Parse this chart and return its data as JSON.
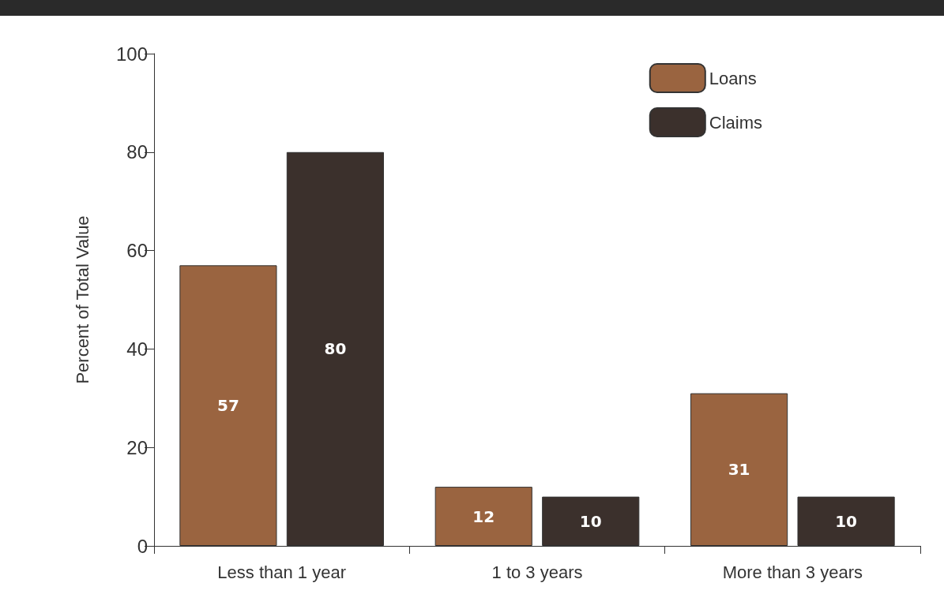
{
  "chart_data": {
    "type": "bar",
    "ylabel": "Percent of Total Value",
    "categories": [
      "Less than 1 year",
      "1 to 3 years",
      "More than 3 years"
    ],
    "series": [
      {
        "name": "Loans",
        "color": "#9a6440",
        "values": [
          57,
          12,
          31
        ]
      },
      {
        "name": "Claims",
        "color": "#3b302c",
        "values": [
          80,
          10,
          10
        ]
      }
    ],
    "ylim": [
      0,
      100
    ],
    "yticks": [
      0,
      20,
      40,
      60,
      80,
      100
    ],
    "grid": false,
    "legend": "top right",
    "data_labels": true
  }
}
